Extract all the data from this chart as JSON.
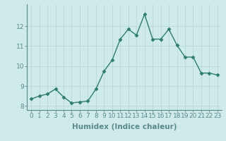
{
  "x": [
    0,
    1,
    2,
    3,
    4,
    5,
    6,
    7,
    8,
    9,
    10,
    11,
    12,
    13,
    14,
    15,
    16,
    17,
    18,
    19,
    20,
    21,
    22,
    23
  ],
  "y": [
    8.35,
    8.5,
    8.6,
    8.85,
    8.45,
    8.15,
    8.2,
    8.25,
    8.85,
    9.75,
    10.3,
    11.35,
    11.85,
    11.55,
    12.6,
    11.35,
    11.35,
    11.85,
    11.05,
    10.45,
    10.45,
    9.65,
    9.65,
    9.55
  ],
  "xlabel": "Humidex (Indice chaleur)",
  "line_color": "#2e7d6e",
  "marker": "D",
  "marker_size": 2.5,
  "bg_color": "#ceeaea",
  "grid_color": "#b8d8d8",
  "xlim": [
    -0.5,
    23.5
  ],
  "ylim": [
    7.8,
    13.1
  ],
  "yticks": [
    8,
    9,
    10,
    11,
    12
  ],
  "xticks": [
    0,
    1,
    2,
    3,
    4,
    5,
    6,
    7,
    8,
    9,
    10,
    11,
    12,
    13,
    14,
    15,
    16,
    17,
    18,
    19,
    20,
    21,
    22,
    23
  ],
  "xtick_labels": [
    "0",
    "1",
    "2",
    "3",
    "4",
    "5",
    "6",
    "7",
    "8",
    "9",
    "10",
    "11",
    "12",
    "13",
    "14",
    "15",
    "16",
    "17",
    "18",
    "19",
    "20",
    "21",
    "22",
    "23"
  ],
  "tick_fontsize": 6.5,
  "xlabel_fontsize": 7.5,
  "line_width": 1.0,
  "spine_color": "#5a8a8a",
  "tick_color": "#5a8a8a"
}
